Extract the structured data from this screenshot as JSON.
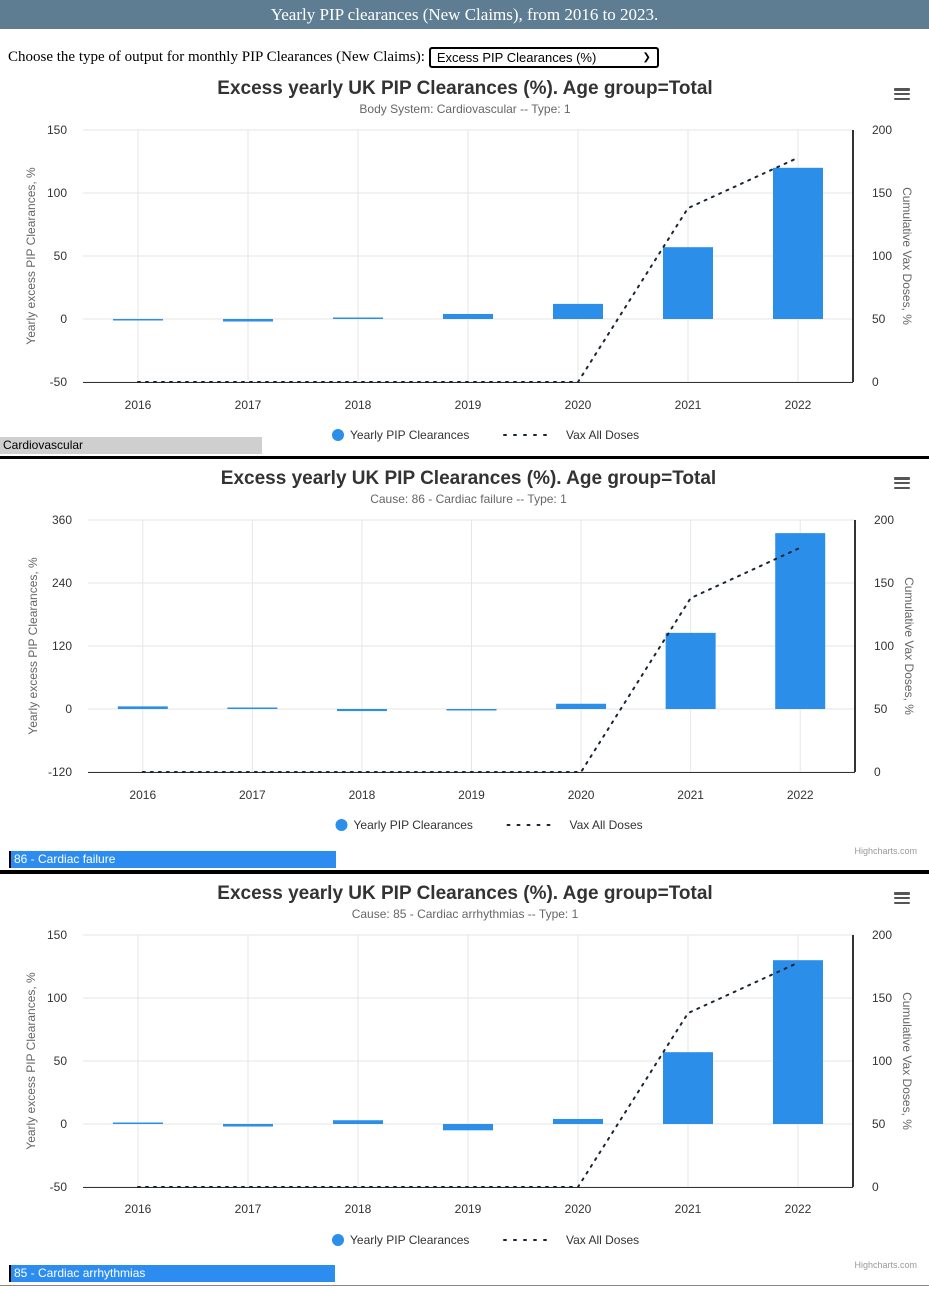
{
  "page": {
    "title": "Yearly PIP clearances (New Claims), from 2016 to 2023.",
    "chooser_label": "Choose the type of output for monthly PIP Clearances (New Claims):",
    "select_value": "Excess PIP Clearances (%)",
    "credit": "Highcharts.com"
  },
  "colors": {
    "bar": "#2b8fea",
    "line": "#1a2533",
    "title_bar": "#5f7d92",
    "name_bar": "#2d8cf0"
  },
  "chart_data": [
    {
      "type": "bar",
      "title": "Excess yearly UK PIP Clearances (%). Age group=Total",
      "subtitle": "Body System: Cardiovascular -- Type: 1",
      "ylabel": "Yearly excess PIP Clearances, %",
      "y2label": "Cumulative Vax Doses, %",
      "categories": [
        "2016",
        "2017",
        "2018",
        "2019",
        "2020",
        "2021",
        "2022"
      ],
      "y_ticks": [
        -50,
        0,
        50,
        100,
        150
      ],
      "y2_ticks": [
        0,
        50,
        100,
        150,
        200
      ],
      "ylim": [
        -50,
        150
      ],
      "y2lim": [
        0,
        200
      ],
      "grid": true,
      "legend": "bottom-center",
      "series": [
        {
          "name": "Yearly PIP Clearances",
          "type": "bar",
          "values": [
            -1,
            -2,
            0,
            4,
            12,
            57,
            120
          ]
        },
        {
          "name": "Vax All Doses",
          "type": "line",
          "axis": "right",
          "values": [
            0,
            0,
            0,
            0,
            0,
            138,
            178
          ]
        }
      ],
      "name_bar": "Cardiovascular"
    },
    {
      "type": "bar",
      "title": "Excess yearly UK PIP Clearances (%). Age group=Total",
      "subtitle": "Cause: 86 - Cardiac failure -- Type: 1",
      "ylabel": "Yearly excess PIP Clearances, %",
      "y2label": "Cumulative Vax Doses, %",
      "categories": [
        "2016",
        "2017",
        "2018",
        "2019",
        "2020",
        "2021",
        "2022"
      ],
      "y_ticks": [
        -120,
        0,
        120,
        240,
        360
      ],
      "y2_ticks": [
        0,
        50,
        100,
        150,
        200
      ],
      "ylim": [
        -120,
        360
      ],
      "y2lim": [
        0,
        200
      ],
      "grid": true,
      "legend": "bottom-center",
      "series": [
        {
          "name": "Yearly PIP Clearances",
          "type": "bar",
          "values": [
            5,
            2,
            -4,
            -2,
            10,
            145,
            335
          ]
        },
        {
          "name": "Vax All Doses",
          "type": "line",
          "axis": "right",
          "values": [
            0,
            0,
            0,
            0,
            0,
            138,
            178
          ]
        }
      ],
      "name_bar": "86 - Cardiac failure"
    },
    {
      "type": "bar",
      "title": "Excess yearly UK PIP Clearances (%). Age group=Total",
      "subtitle": "Cause: 85 - Cardiac arrhythmias -- Type: 1",
      "ylabel": "Yearly excess PIP Clearances, %",
      "y2label": "Cumulative Vax Doses, %",
      "categories": [
        "2016",
        "2017",
        "2018",
        "2019",
        "2020",
        "2021",
        "2022"
      ],
      "y_ticks": [
        -50,
        0,
        50,
        100,
        150
      ],
      "y2_ticks": [
        0,
        50,
        100,
        150,
        200
      ],
      "ylim": [
        -50,
        150
      ],
      "y2lim": [
        0,
        200
      ],
      "grid": true,
      "legend": "bottom-center",
      "series": [
        {
          "name": "Yearly PIP Clearances",
          "type": "bar",
          "values": [
            1,
            -2,
            3,
            -5,
            4,
            57,
            130
          ]
        },
        {
          "name": "Vax All Doses",
          "type": "line",
          "axis": "right",
          "values": [
            0,
            0,
            0,
            0,
            0,
            138,
            178
          ]
        }
      ],
      "name_bar": "85 - Cardiac arrhythmias"
    }
  ]
}
